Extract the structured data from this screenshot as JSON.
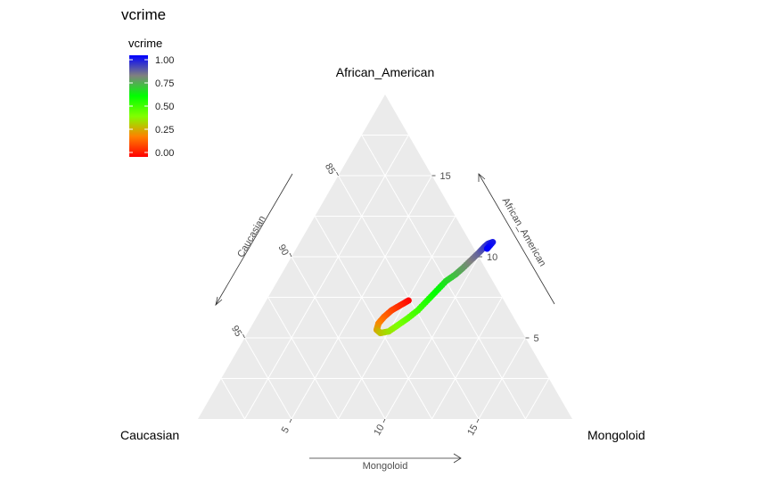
{
  "chart_data": {
    "type": "scatter",
    "subtype": "ternary",
    "title": "vcrime",
    "vertices": {
      "top": "African_American",
      "left": "Caucasian",
      "right": "Mongoloid"
    },
    "axes": {
      "african_american": {
        "title": "African_American",
        "ticks": [
          "5",
          "10",
          "15"
        ],
        "range": [
          0,
          20
        ]
      },
      "caucasian": {
        "title": "Caucasian",
        "ticks": [
          "85",
          "90",
          "95"
        ],
        "range": [
          80,
          100
        ]
      },
      "mongoloid": {
        "title": "Mongoloid",
        "ticks": [
          "5",
          "10",
          "15"
        ],
        "range": [
          0,
          20
        ]
      }
    },
    "grid": true,
    "legend": {
      "title": "vcrime",
      "placement": "top-left",
      "ticks": [
        "1.00",
        "0.75",
        "0.50",
        "0.25",
        "0.00"
      ],
      "colors": [
        "#ff0000",
        "#ff8000",
        "#80ff00",
        "#00ff00",
        "#808080",
        "#0000ff"
      ]
    },
    "points": [
      {
        "mongoloid": 7.6,
        "african_american": 7.3,
        "vcrime": 0.0
      },
      {
        "mongoloid": 7.3,
        "african_american": 7.0,
        "vcrime": 0.05
      },
      {
        "mongoloid": 7.0,
        "african_american": 6.7,
        "vcrime": 0.1
      },
      {
        "mongoloid": 6.8,
        "african_american": 6.3,
        "vcrime": 0.15
      },
      {
        "mongoloid": 6.7,
        "african_american": 5.9,
        "vcrime": 0.2
      },
      {
        "mongoloid": 6.8,
        "african_american": 5.5,
        "vcrime": 0.25
      },
      {
        "mongoloid": 7.1,
        "african_american": 5.3,
        "vcrime": 0.3
      },
      {
        "mongoloid": 7.5,
        "african_american": 5.4,
        "vcrime": 0.35
      },
      {
        "mongoloid": 7.8,
        "african_american": 5.8,
        "vcrime": 0.4
      },
      {
        "mongoloid": 8.1,
        "african_american": 6.2,
        "vcrime": 0.45
      },
      {
        "mongoloid": 8.4,
        "african_american": 6.7,
        "vcrime": 0.5
      },
      {
        "mongoloid": 8.6,
        "african_american": 7.3,
        "vcrime": 0.55
      },
      {
        "mongoloid": 8.8,
        "african_american": 7.9,
        "vcrime": 0.6
      },
      {
        "mongoloid": 9.0,
        "african_american": 8.5,
        "vcrime": 0.65
      },
      {
        "mongoloid": 9.3,
        "african_american": 8.9,
        "vcrime": 0.7
      },
      {
        "mongoloid": 9.5,
        "african_american": 9.3,
        "vcrime": 0.75
      },
      {
        "mongoloid": 9.7,
        "african_american": 9.8,
        "vcrime": 0.8
      },
      {
        "mongoloid": 9.9,
        "african_american": 10.3,
        "vcrime": 0.85
      },
      {
        "mongoloid": 10.0,
        "african_american": 10.6,
        "vcrime": 0.9
      },
      {
        "mongoloid": 10.1,
        "african_american": 10.8,
        "vcrime": 0.93
      },
      {
        "mongoloid": 10.3,
        "african_american": 10.9,
        "vcrime": 0.96
      },
      {
        "mongoloid": 10.2,
        "african_american": 10.5,
        "vcrime": 1.0
      }
    ]
  }
}
